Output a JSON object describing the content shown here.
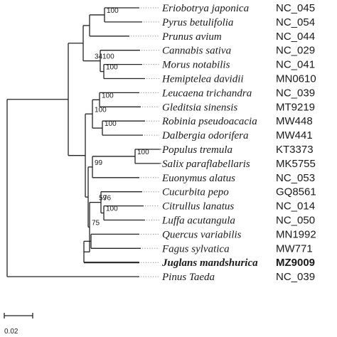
{
  "tree": {
    "leaves": [
      {
        "taxon": "Eriobotrya japonica",
        "accession": "NC_045"
      },
      {
        "taxon": "Pyrus betulifolia",
        "accession": "NC_054"
      },
      {
        "taxon": "Prunus avium",
        "accession": "NC_044"
      },
      {
        "taxon": "Cannabis sativa",
        "accession": "NC_029"
      },
      {
        "taxon": "Morus notabilis",
        "accession": "NC_041"
      },
      {
        "taxon": "Hemiptelea davidii",
        "accession": "MN0610"
      },
      {
        "taxon": "Leucaena trichandra",
        "accession": "NC_039"
      },
      {
        "taxon": "Gleditsia sinensis",
        "accession": "MT9219"
      },
      {
        "taxon": "Robinia pseudoacacia",
        "accession": "MW448"
      },
      {
        "taxon": "Dalbergia odorifera",
        "accession": "MW441"
      },
      {
        "taxon": "Populus tremula",
        "accession": "KT3373"
      },
      {
        "taxon": "Salix paraflabellaris",
        "accession": "MK5755"
      },
      {
        "taxon": "Euonymus alatus",
        "accession": "NC_053"
      },
      {
        "taxon": "Cucurbita pepo",
        "accession": "GQ8561"
      },
      {
        "taxon": "Citrullus lanatus",
        "accession": "NC_014"
      },
      {
        "taxon": "Luffa acutangula",
        "accession": "NC_050"
      },
      {
        "taxon": "Quercus variabilis",
        "accession": "MN1992"
      },
      {
        "taxon": "Fagus sylvatica",
        "accession": "MW771"
      },
      {
        "taxon": "Juglans mandshurica",
        "accession": "MZ9009",
        "highlight": true
      },
      {
        "taxon": "Pinus Taeda",
        "accession": "NC_039"
      }
    ],
    "supports": [
      "100",
      "100",
      "100",
      "100",
      "34",
      "100",
      "100",
      "100",
      "100",
      "99",
      "75",
      "76",
      "100",
      "59"
    ],
    "scale": "0.02"
  }
}
